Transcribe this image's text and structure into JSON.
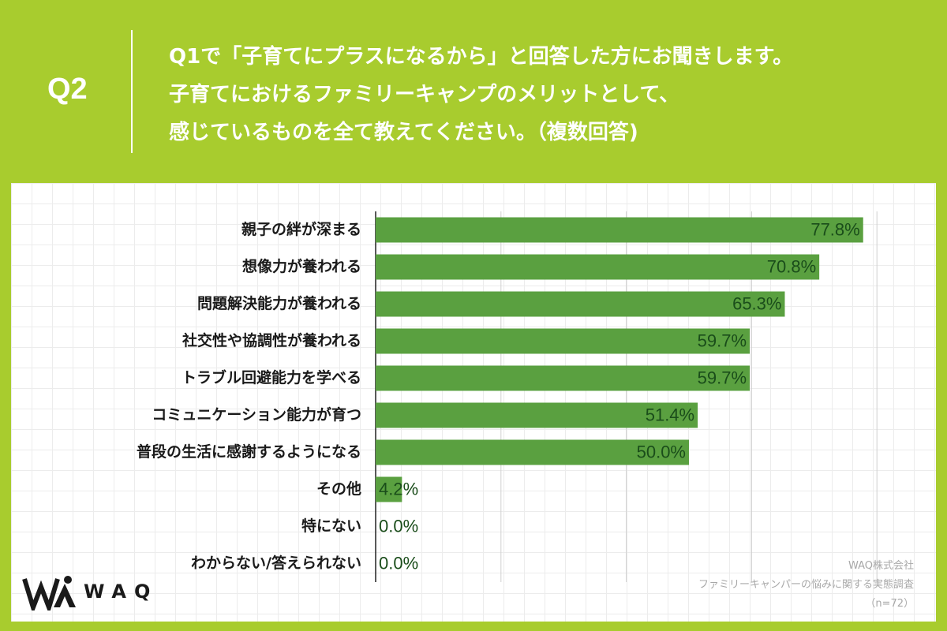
{
  "header": {
    "question_label": "Q2",
    "question_lines": [
      "Q1で「子育てにプラスになるから」と回答した方にお聞きします。",
      "子育てにおけるファミリーキャンプのメリットとして、",
      "感じているものを全て教えてください。（複数回答)"
    ]
  },
  "footer": {
    "company": "WAQ株式会社",
    "survey": "ファミリーキャンパーの悩みに関する実態調査",
    "sample": "（n=72）"
  },
  "logo": {
    "text": "WAQ"
  },
  "colors": {
    "background": "#a8cc2e",
    "bar": "#5aa040",
    "value_label": "#1a4d1a"
  },
  "chart_data": {
    "type": "bar",
    "orientation": "horizontal",
    "categories": [
      "親子の絆が深まる",
      "想像力が養われる",
      "問題解決能力が養われる",
      "社交性や協調性が養われる",
      "トラブル回避能力を学べる",
      "コミュニケーション能力が育つ",
      "普段の生活に感謝するようになる",
      "その他",
      "特にない",
      "わからない/答えられない"
    ],
    "values": [
      77.8,
      70.8,
      65.3,
      59.7,
      59.7,
      51.4,
      50.0,
      4.2,
      0.0,
      0.0
    ],
    "value_labels": [
      "77.8%",
      "70.8%",
      "65.3%",
      "59.7%",
      "59.7%",
      "51.4%",
      "50.0%",
      "4.2%",
      "0.0%",
      "0.0%"
    ],
    "xlim": [
      0,
      100
    ],
    "x_gridlines": [
      20,
      40,
      60,
      80
    ],
    "grid": true
  }
}
